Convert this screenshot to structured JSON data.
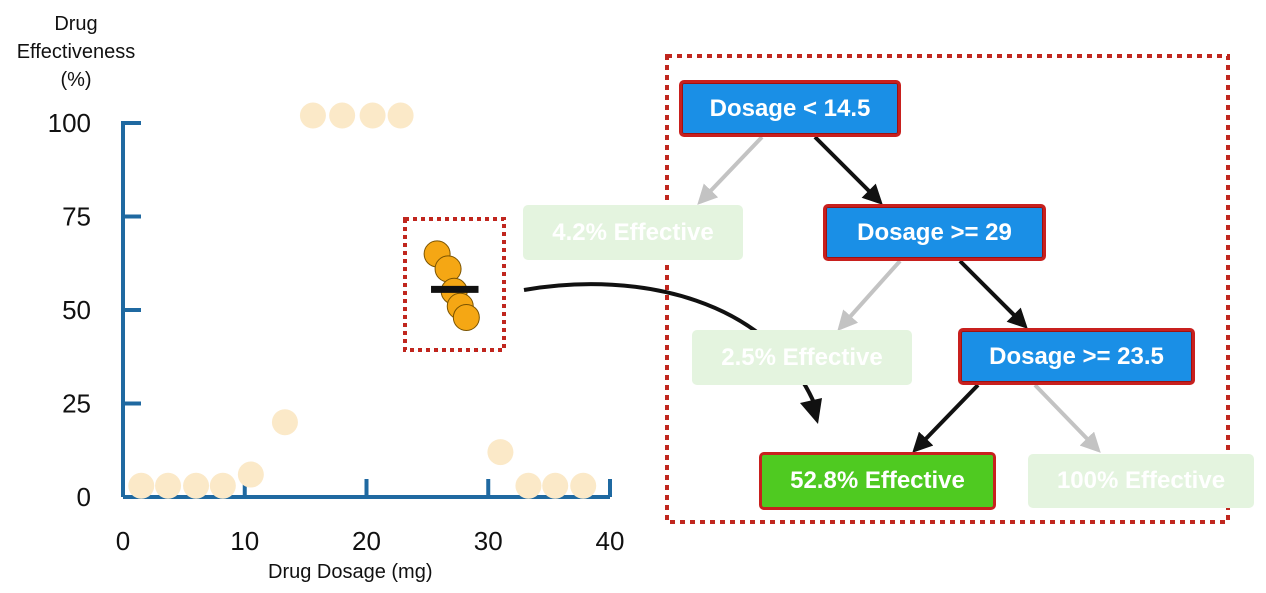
{
  "chart": {
    "y_axis_label_lines": [
      "Drug",
      "Effectiveness",
      "(%)"
    ],
    "x_axis_label": "Drug Dosage (mg)",
    "y_ticks": [
      "100",
      "75",
      "50",
      "25",
      "0"
    ],
    "x_ticks": [
      "0",
      "10",
      "20",
      "30",
      "40"
    ],
    "xlim": [
      0,
      40
    ],
    "ylim": [
      0,
      100
    ],
    "axis_color": "#1f69a1"
  },
  "chart_data": {
    "type": "scatter",
    "xlabel": "Drug Dosage (mg)",
    "ylabel": "Drug Effectiveness (%)",
    "xlim": [
      0,
      40
    ],
    "ylim": [
      0,
      100
    ],
    "grid": false,
    "series": [
      {
        "x": [
          1.5,
          3.7,
          6,
          8.2,
          10.5,
          13.3,
          15.6,
          18,
          20.5,
          22.8,
          31,
          33.3,
          35.5,
          37.8
        ],
        "y": [
          3,
          3,
          3,
          3,
          6,
          20,
          102,
          102,
          102,
          102,
          12,
          3,
          3,
          3
        ],
        "color": "#fbe9c8"
      },
      {
        "x": [
          25.8,
          26.7,
          27.2,
          27.7,
          28.2
        ],
        "y": [
          65,
          61,
          55,
          51,
          48
        ],
        "color": "#f5a714"
      }
    ],
    "mean_line": {
      "x_range": [
        25.3,
        29.2
      ],
      "y": 55.5
    }
  },
  "tree": {
    "nodes": {
      "root": "Dosage < 14.5",
      "second": "Dosage >= 29",
      "third": "Dosage >= 23.5",
      "leaf_a": "4.2% Effective",
      "leaf_b": "2.5% Effective",
      "leaf_c": "52.8% Effective",
      "leaf_d": "100% Effective"
    },
    "colors": {
      "decision": "#1a8fe6",
      "highlight_leaf": "#4fca21",
      "faded_leaf": "#e4f4df",
      "highlight_border": "#c8201e"
    }
  }
}
